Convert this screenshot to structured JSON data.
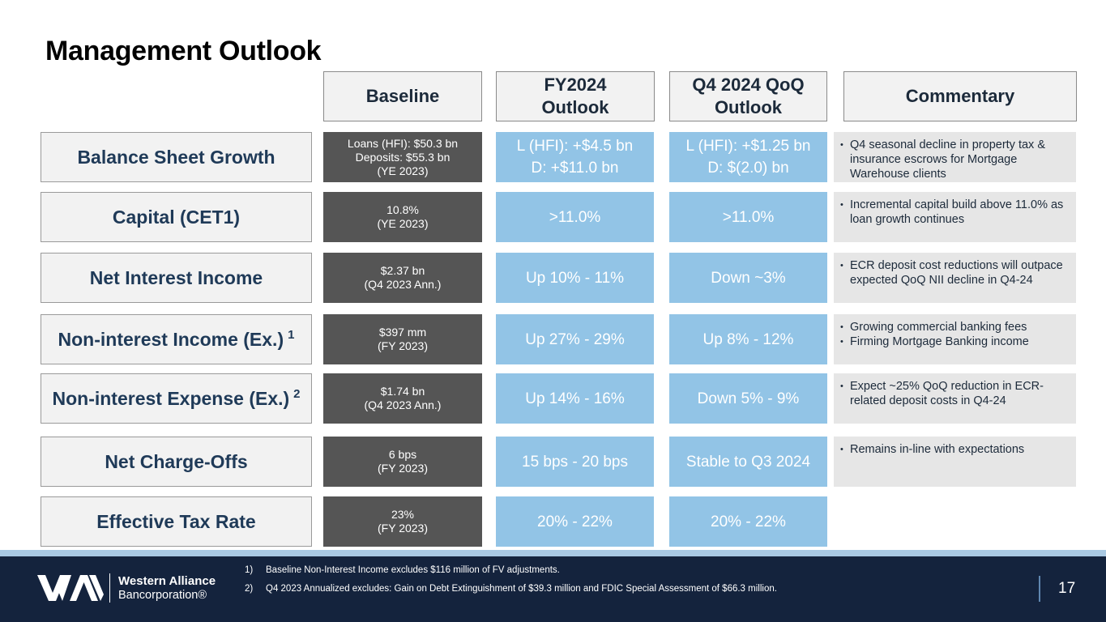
{
  "page": {
    "title": "Management Outlook",
    "page_number": "17"
  },
  "headers": {
    "baseline": "Baseline",
    "fy2024": "FY2024\nOutlook",
    "q4": "Q4 2024 QoQ\nOutlook",
    "commentary": "Commentary"
  },
  "rows": [
    {
      "label": "Balance Sheet Growth",
      "sup": "",
      "baseline": [
        "Loans (HFI): $50.3 bn",
        "Deposits: $55.3 bn",
        "(YE 2023)"
      ],
      "fy2024": [
        "L (HFI): +$4.5 bn",
        "D: +$11.0 bn"
      ],
      "q4": [
        "L (HFI): +$1.25 bn",
        "D: $(2.0) bn"
      ],
      "commentary": [
        "Q4 seasonal decline in property tax & insurance escrows for Mortgage Warehouse clients"
      ]
    },
    {
      "label": "Capital (CET1)",
      "sup": "",
      "baseline": [
        "10.8%",
        "(YE 2023)"
      ],
      "fy2024": [
        ">11.0%"
      ],
      "q4": [
        ">11.0%"
      ],
      "commentary": [
        "Incremental capital build above 11.0% as loan growth continues"
      ]
    },
    {
      "label": "Net Interest Income",
      "sup": "",
      "baseline": [
        "$2.37 bn",
        "(Q4 2023 Ann.)"
      ],
      "fy2024": [
        "Up 10% - 11%"
      ],
      "q4": [
        "Down ~3%"
      ],
      "commentary": [
        "ECR deposit cost reductions will outpace expected QoQ NII decline in Q4-24"
      ]
    },
    {
      "label": "Non-interest Income (Ex.)",
      "sup": "1",
      "baseline": [
        "$397 mm",
        "(FY 2023)"
      ],
      "fy2024": [
        "Up 27% - 29%"
      ],
      "q4": [
        "Up 8% - 12%"
      ],
      "commentary": [
        "Growing commercial banking fees",
        "Firming Mortgage Banking income"
      ]
    },
    {
      "label": "Non-interest Expense (Ex.)",
      "sup": "2",
      "baseline": [
        "$1.74 bn",
        "(Q4 2023 Ann.)"
      ],
      "fy2024": [
        "Up 14% - 16%"
      ],
      "q4": [
        "Down 5% - 9%"
      ],
      "commentary": [
        "Expect ~25% QoQ reduction in ECR-related deposit costs in Q4-24"
      ]
    },
    {
      "label": "Net Charge-Offs",
      "sup": "",
      "baseline": [
        "6 bps",
        "(FY 2023)"
      ],
      "fy2024": [
        "15 bps - 20 bps"
      ],
      "q4": [
        "Stable to Q3 2024"
      ],
      "commentary": [
        "Remains in-line with expectations"
      ]
    },
    {
      "label": "Effective Tax Rate",
      "sup": "",
      "baseline": [
        "23%",
        "(FY 2023)"
      ],
      "fy2024": [
        "20% - 22%"
      ],
      "q4": [
        "20% - 22%"
      ],
      "commentary": []
    }
  ],
  "footnotes": [
    {
      "num": "1)",
      "text": "Baseline Non-Interest Income excludes $116 million of FV adjustments."
    },
    {
      "num": "2)",
      "text": "Q4 2023 Annualized excludes: Gain on Debt Extinguishment of $39.3 million and FDIC Special Assessment of $66.3 million."
    }
  ],
  "logo": {
    "name": "Western Alliance",
    "sub": "Bancorporation®"
  },
  "colors": {
    "accent_blue": "#92c4e6",
    "navy": "#14233d",
    "baseline_gray": "#555555"
  }
}
